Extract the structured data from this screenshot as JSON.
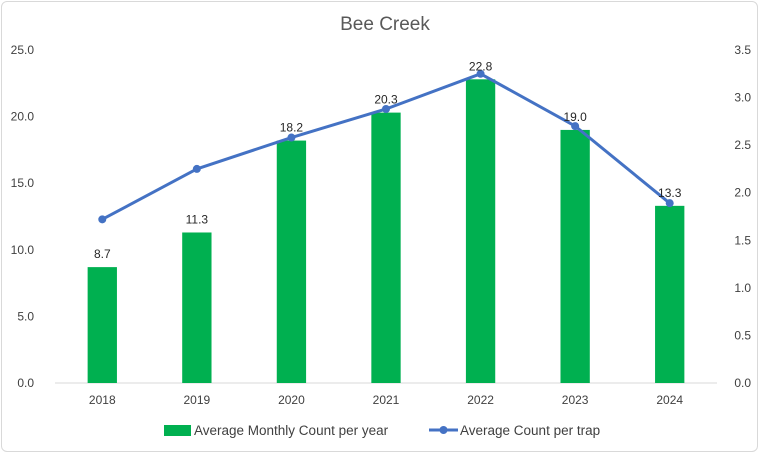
{
  "chart_data": {
    "type": "bar",
    "title": "Bee Creek",
    "xlabel": "",
    "ylabel": "",
    "categories": [
      "2018",
      "2019",
      "2020",
      "2021",
      "2022",
      "2023",
      "2024"
    ],
    "series": [
      {
        "name": "Average Monthly Count per year",
        "type": "bar",
        "axis": "left",
        "color": "#00b050",
        "values": [
          8.7,
          11.3,
          18.2,
          20.3,
          22.8,
          19.0,
          13.3
        ],
        "labels": [
          "8.7",
          "11.3",
          "18.2",
          "20.3",
          "22.8",
          "19.0",
          "13.3"
        ]
      },
      {
        "name": "Average Count per trap",
        "type": "line",
        "axis": "right",
        "color": "#4472c4",
        "values": [
          1.72,
          2.25,
          2.58,
          2.88,
          3.25,
          2.7,
          1.89
        ]
      }
    ],
    "ylim": [
      0,
      25
    ],
    "y2lim": [
      0,
      3.5
    ],
    "yticks": [
      "0.0",
      "5.0",
      "10.0",
      "15.0",
      "20.0",
      "25.0"
    ],
    "y2ticks": [
      "0.0",
      "0.5",
      "1.0",
      "1.5",
      "2.0",
      "2.5",
      "3.0",
      "3.5"
    ],
    "grid": false,
    "legend": "bottom"
  }
}
